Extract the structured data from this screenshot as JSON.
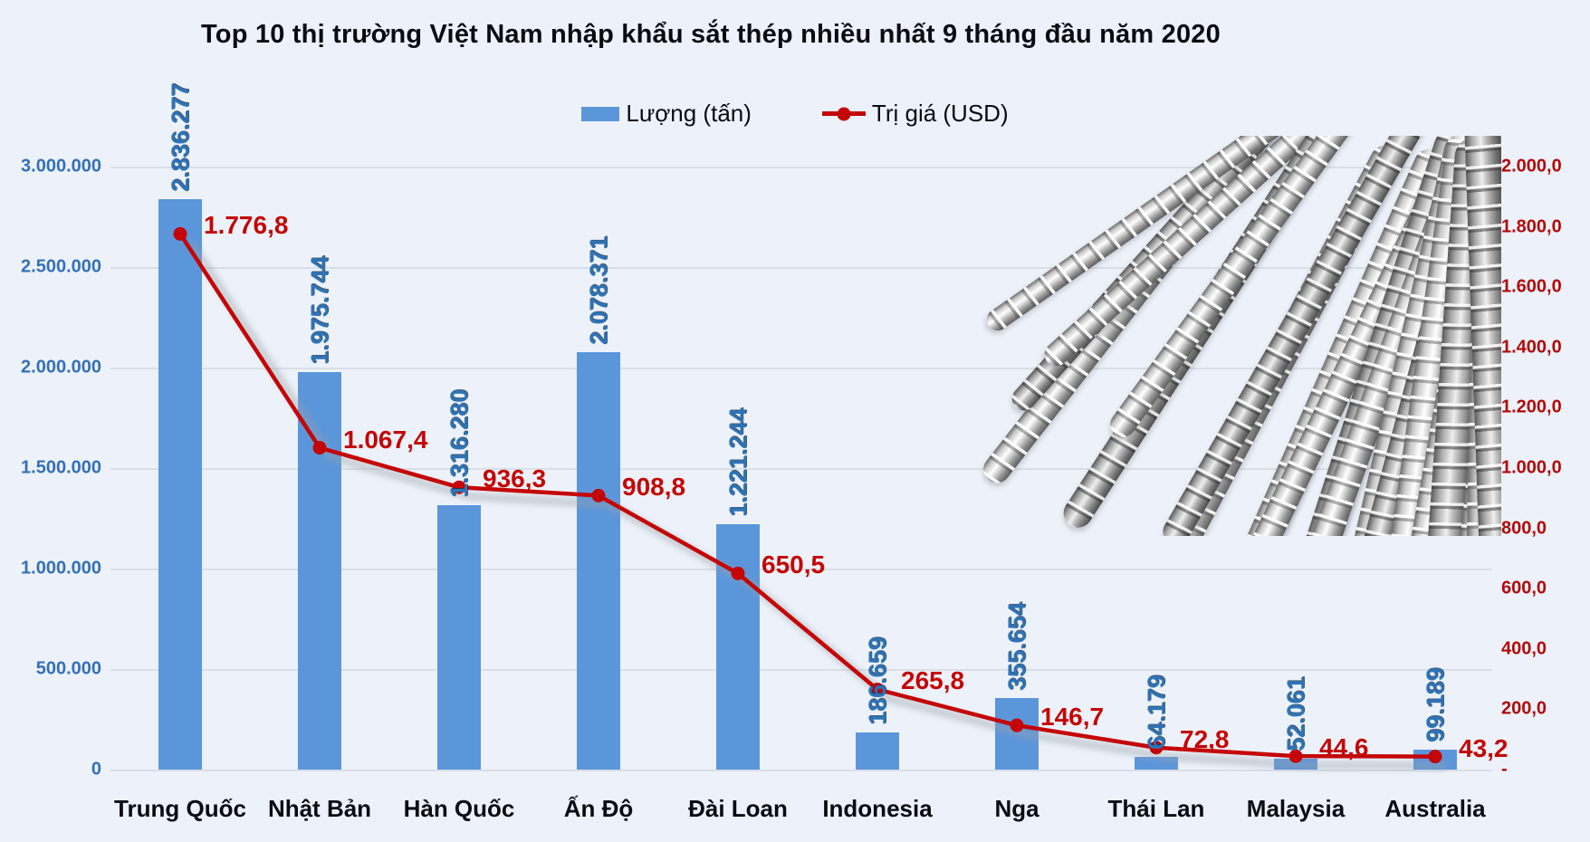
{
  "title": "Top 10 thị trường Việt Nam nhập khẩu sắt thép nhiều nhất 9 tháng đầu năm 2020",
  "legend": {
    "bar_label": "Lượng (tấn)",
    "line_label": "Trị giá (USD)"
  },
  "colors": {
    "background": "#EDF2FA",
    "gridline": "#D9DEE7",
    "bar": "#5B96DB",
    "line": "#C40606",
    "left_axis_text": "#3470B8",
    "right_axis_text": "#B20A0A",
    "bar_value_text": "#2E74B5",
    "title_text": "#0A0A12",
    "category_text": "#0A0A12"
  },
  "chart_data": {
    "type": "combo-bar-line",
    "categories": [
      "Trung Quốc",
      "Nhật Bản",
      "Hàn Quốc",
      "Ấn Độ",
      "Đài Loan",
      "Indonesia",
      "Nga",
      "Thái Lan",
      "Malaysia",
      "Australia"
    ],
    "series": [
      {
        "name": "Lượng (tấn)",
        "type": "bar",
        "axis": "left",
        "values": [
          2836277,
          1975744,
          1316280,
          2078371,
          1221244,
          186659,
          355654,
          64179,
          52061,
          99189
        ],
        "labels": [
          "2.836.277",
          "1.975.744",
          "1.316.280",
          "2.078.371",
          "1.221.244",
          "186.659",
          "355.654",
          "64.179",
          "52.061",
          "99.189"
        ]
      },
      {
        "name": "Trị giá (USD)",
        "type": "line",
        "axis": "right",
        "values": [
          1776.8,
          1067.4,
          936.3,
          908.8,
          650.5,
          265.8,
          146.7,
          72.8,
          44.6,
          43.2
        ],
        "labels": [
          "1.776,8",
          "1.067,4",
          "936,3",
          "908,8",
          "650,5",
          "265,8",
          "146,7",
          "72,8",
          "44,6",
          "43,2"
        ]
      }
    ],
    "left_axis": {
      "range": [
        0,
        3000000
      ],
      "step": 500000,
      "ticks": [
        "3.000.000",
        "2.500.000",
        "2.000.000",
        "1.500.000",
        "1.000.000",
        "500.000",
        "0"
      ]
    },
    "right_axis": {
      "range": [
        0,
        2000
      ],
      "step": 200,
      "ticks": [
        "2.000,0",
        "1.800,0",
        "1.600,0",
        "1.400,0",
        "1.200,0",
        "1.000,0",
        "800,0",
        "600,0",
        "400,0",
        "200,0",
        "-"
      ]
    },
    "grid": true,
    "legend_position": "top-center"
  },
  "decor": {
    "rebar_image": "steel-rebar-bundle"
  }
}
